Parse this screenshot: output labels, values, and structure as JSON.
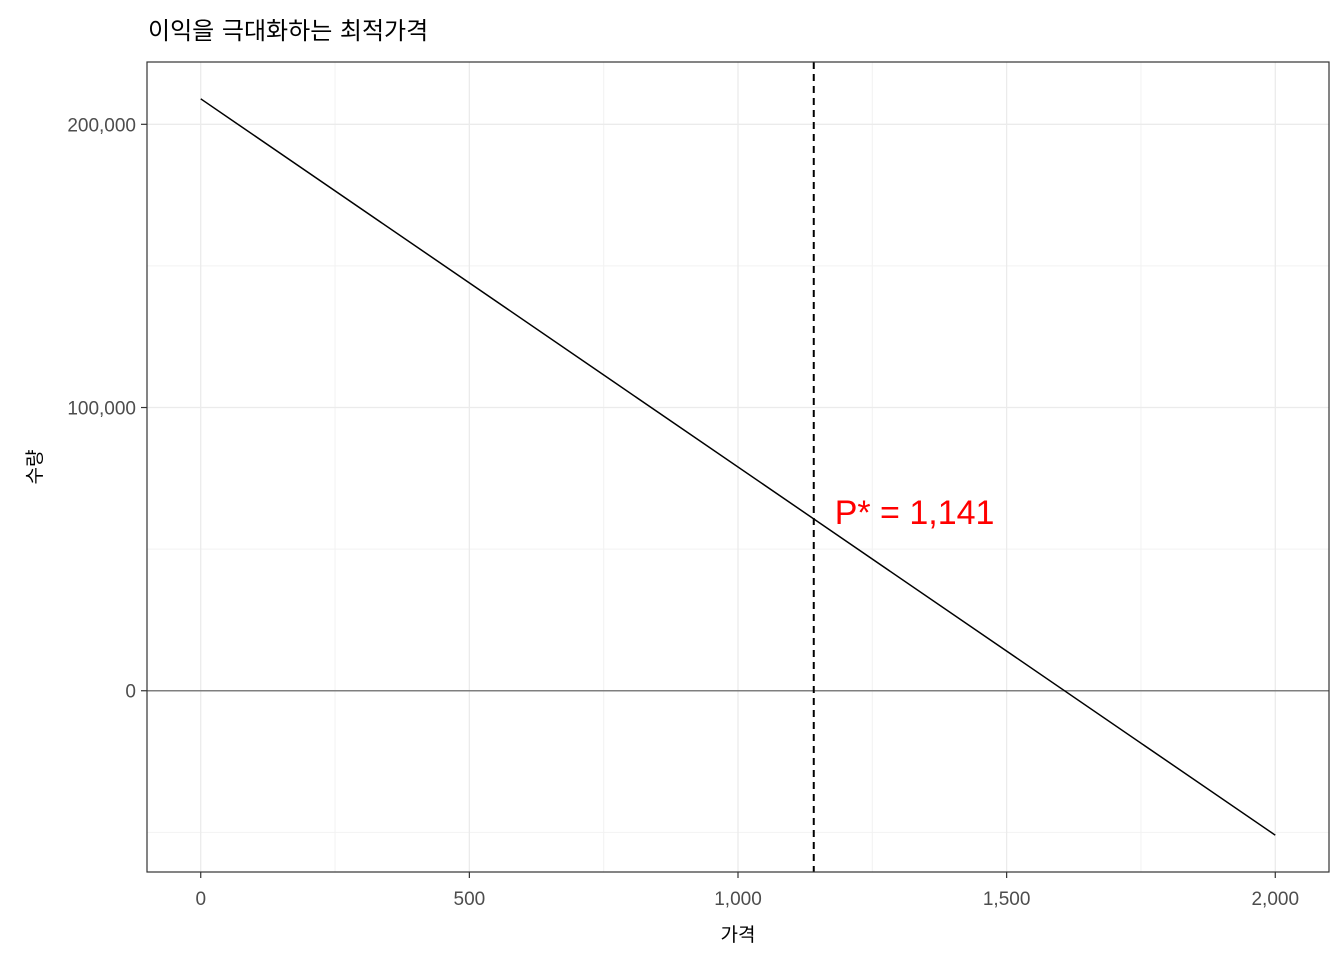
{
  "chart_data": {
    "type": "line",
    "title": "이익을 극대화하는 최적가격",
    "xlabel": "가격",
    "ylabel": "수량",
    "xlim": [
      -100,
      2100
    ],
    "ylim": [
      -64000,
      222000
    ],
    "x_ticks": [
      0,
      500,
      1000,
      1500,
      2000
    ],
    "x_tick_labels": [
      "0",
      "500",
      "1,000",
      "1,500",
      "2,000"
    ],
    "y_ticks": [
      0,
      100000,
      200000
    ],
    "y_tick_labels": [
      "0",
      "100,000",
      "200,000"
    ],
    "grid": true,
    "series": [
      {
        "x": [
          0,
          2000
        ],
        "y": [
          209000,
          -51000
        ],
        "color": "#000000"
      }
    ],
    "reference_lines": [
      {
        "orientation": "horizontal",
        "value": 0,
        "color": "#7f7f7f",
        "style": "solid"
      },
      {
        "orientation": "vertical",
        "value": 1141,
        "color": "#000000",
        "style": "dashed"
      }
    ],
    "annotations": [
      {
        "text": "P* = 1,141",
        "x": 1180,
        "y": 62000,
        "color": "#ff0000"
      }
    ]
  }
}
